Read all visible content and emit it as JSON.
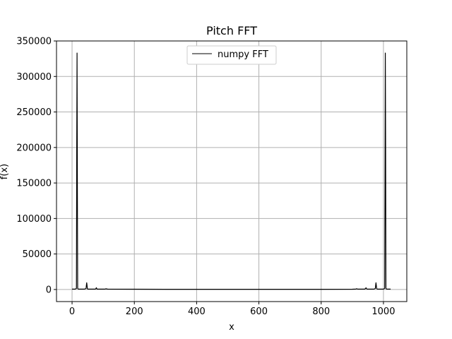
{
  "chart_data": {
    "type": "line",
    "title": "Pitch FFT",
    "xlabel": "x",
    "ylabel": "f(x)",
    "xlim": [
      -50,
      1075
    ],
    "ylim": [
      -17000,
      350000
    ],
    "xticks": [
      0,
      200,
      400,
      600,
      800,
      1000
    ],
    "yticks": [
      0,
      50000,
      100000,
      150000,
      200000,
      250000,
      300000,
      350000
    ],
    "grid": true,
    "legend_position": "upper center",
    "colors": {
      "line": "#000000",
      "grid": "#b0b0b0",
      "axes": "#000000"
    },
    "series": [
      {
        "name": "numpy FFT",
        "points": [
          [
            0,
            500
          ],
          [
            10,
            500
          ],
          [
            14,
            1500
          ],
          [
            15,
            200000
          ],
          [
            16,
            333000
          ],
          [
            17,
            150000
          ],
          [
            18,
            1500
          ],
          [
            20,
            500
          ],
          [
            40,
            500
          ],
          [
            45,
            1500
          ],
          [
            46,
            6000
          ],
          [
            47,
            9500
          ],
          [
            48,
            6000
          ],
          [
            49,
            1500
          ],
          [
            50,
            500
          ],
          [
            75,
            500
          ],
          [
            77,
            1500
          ],
          [
            78,
            2500
          ],
          [
            79,
            1500
          ],
          [
            80,
            500
          ],
          [
            105,
            500
          ],
          [
            108,
            800
          ],
          [
            109,
            1200
          ],
          [
            110,
            800
          ],
          [
            115,
            500
          ],
          [
            200,
            400
          ],
          [
            300,
            300
          ],
          [
            400,
            300
          ],
          [
            500,
            300
          ],
          [
            600,
            300
          ],
          [
            700,
            300
          ],
          [
            800,
            300
          ],
          [
            900,
            400
          ],
          [
            910,
            500
          ],
          [
            913,
            800
          ],
          [
            914,
            1200
          ],
          [
            915,
            800
          ],
          [
            918,
            500
          ],
          [
            940,
            500
          ],
          [
            943,
            1500
          ],
          [
            944,
            2500
          ],
          [
            945,
            1500
          ],
          [
            947,
            500
          ],
          [
            970,
            500
          ],
          [
            974,
            1500
          ],
          [
            975,
            6000
          ],
          [
            976,
            9500
          ],
          [
            977,
            6000
          ],
          [
            978,
            1500
          ],
          [
            980,
            500
          ],
          [
            1000,
            500
          ],
          [
            1004,
            1500
          ],
          [
            1005,
            150000
          ],
          [
            1006,
            333000
          ],
          [
            1007,
            200000
          ],
          [
            1008,
            1500
          ],
          [
            1010,
            500
          ],
          [
            1023,
            500
          ]
        ]
      }
    ]
  }
}
